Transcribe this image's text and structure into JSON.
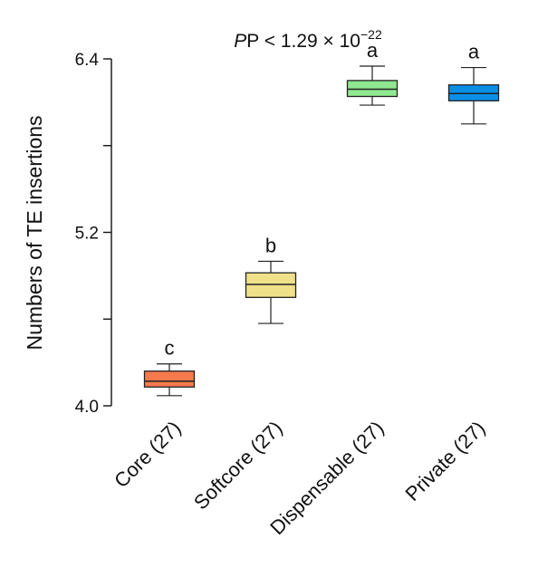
{
  "chart_data": {
    "type": "box",
    "annotation": "P < 1.29 × 10",
    "annotation_exponent": "−22",
    "ylabel": "Numbers of TE insertions",
    "xlabel": "",
    "ylim": [
      4.0,
      6.4
    ],
    "yticks": [
      4.0,
      4.6,
      5.2,
      5.8,
      6.4
    ],
    "ytick_labels": [
      "4.0",
      "",
      "5.2",
      "",
      "6.4"
    ],
    "grid": false,
    "legend": "none",
    "categories": [
      "Core (27)",
      "Softcore (27)",
      "Dispensable (27)",
      "Private (27)"
    ],
    "boxes": [
      {
        "category": "Core (27)",
        "whisker_low": 4.07,
        "q1": 4.13,
        "median": 4.17,
        "q3": 4.24,
        "whisker_high": 4.29,
        "letter": "c",
        "color": "#f47a4d"
      },
      {
        "category": "Softcore (27)",
        "whisker_low": 4.57,
        "q1": 4.75,
        "median": 4.84,
        "q3": 4.92,
        "whisker_high": 5.0,
        "letter": "b",
        "color": "#efe08a"
      },
      {
        "category": "Dispensable (27)",
        "whisker_low": 6.08,
        "q1": 6.14,
        "median": 6.19,
        "q3": 6.25,
        "whisker_high": 6.35,
        "letter": "a",
        "color": "#8fe88f"
      },
      {
        "category": "Private (27)",
        "whisker_low": 5.95,
        "q1": 6.11,
        "median": 6.16,
        "q3": 6.22,
        "whisker_high": 6.34,
        "letter": "a",
        "color": "#0b8fe6"
      }
    ]
  }
}
